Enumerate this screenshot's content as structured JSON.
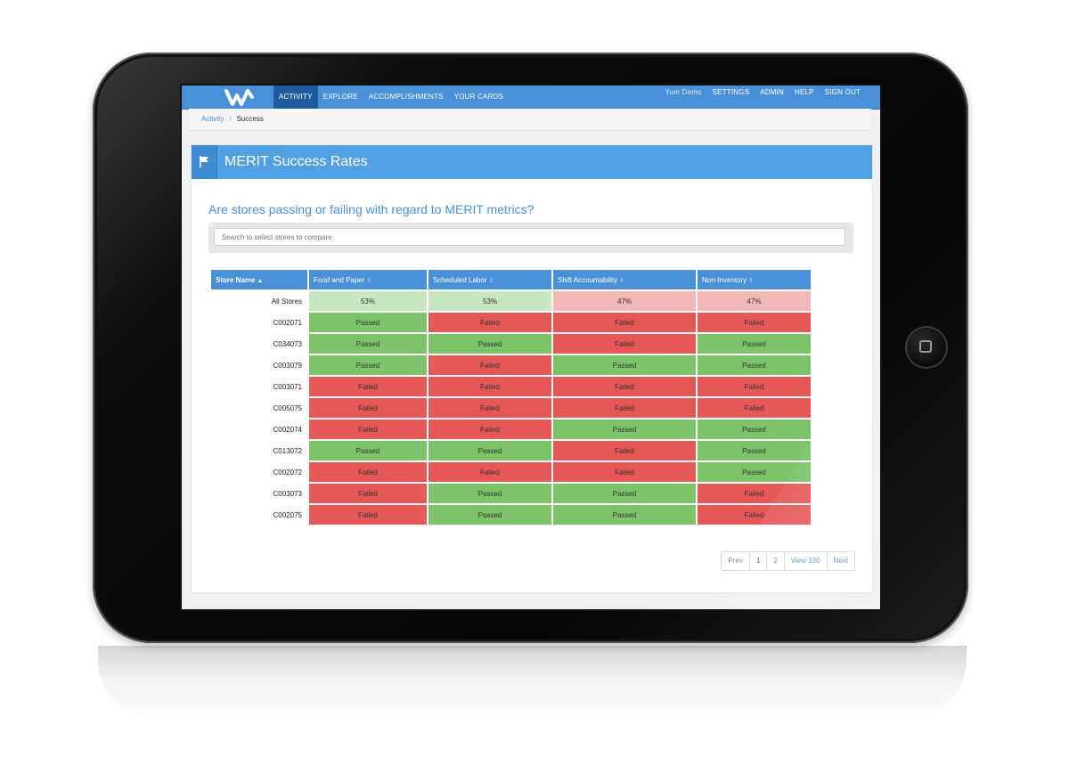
{
  "topbar": {
    "nav": [
      "ACTIVITY",
      "EXPLORE",
      "ACCOMPLISHMENTS",
      "YOUR CARDS"
    ],
    "user": "Yum Demo",
    "links": [
      "SETTINGS",
      "ADMIN",
      "HELP",
      "SIGN OUT"
    ]
  },
  "breadcrumb": {
    "link": "Activity",
    "separator": "/",
    "current": "Success"
  },
  "panel": {
    "title": "MERIT Success Rates"
  },
  "question": "Are stores passing or failing with regard to MERIT metrics?",
  "search": {
    "placeholder": "Search to select stores to compare",
    "value": ""
  },
  "table": {
    "headers": [
      "Store Name",
      "Food and Paper",
      "Scheduled Labor",
      "Shift Accountability",
      "Non-Inventory"
    ],
    "summary": {
      "store": "All Stores",
      "values": [
        "53%",
        "53%",
        "47%",
        "47%"
      ]
    },
    "rows": [
      {
        "store": "C002071",
        "values": [
          "Passed",
          "Failed",
          "Failed",
          "Failed"
        ]
      },
      {
        "store": "C034073",
        "values": [
          "Passed",
          "Passed",
          "Failed",
          "Passed"
        ]
      },
      {
        "store": "C003079",
        "values": [
          "Passed",
          "Failed",
          "Passed",
          "Passed"
        ]
      },
      {
        "store": "C003071",
        "values": [
          "Failed",
          "Failed",
          "Failed",
          "Failed"
        ]
      },
      {
        "store": "C005075",
        "values": [
          "Failed",
          "Failed",
          "Failed",
          "Failed"
        ]
      },
      {
        "store": "C002074",
        "values": [
          "Failed",
          "Failed",
          "Passed",
          "Passed"
        ]
      },
      {
        "store": "C013072",
        "values": [
          "Passed",
          "Passed",
          "Failed",
          "Passed"
        ]
      },
      {
        "store": "C002072",
        "values": [
          "Failed",
          "Failed",
          "Failed",
          "Passed"
        ]
      },
      {
        "store": "C003073",
        "values": [
          "Failed",
          "Passed",
          "Passed",
          "Failed"
        ]
      },
      {
        "store": "C002075",
        "values": [
          "Failed",
          "Passed",
          "Passed",
          "Failed"
        ]
      }
    ]
  },
  "pagination": [
    "Prev",
    "1",
    "2",
    "View 100",
    "Next"
  ],
  "colors": {
    "brand_blue": "#4a90d9",
    "pass": "#7cc36a",
    "fail": "#e65858",
    "summary_pass": "#c6e7bf",
    "summary_fail": "#f2b7b7"
  },
  "icons": {
    "logo": "w-logo",
    "panel": "flag-icon",
    "sort": "sort-icon",
    "home_button": "home-square-icon"
  }
}
